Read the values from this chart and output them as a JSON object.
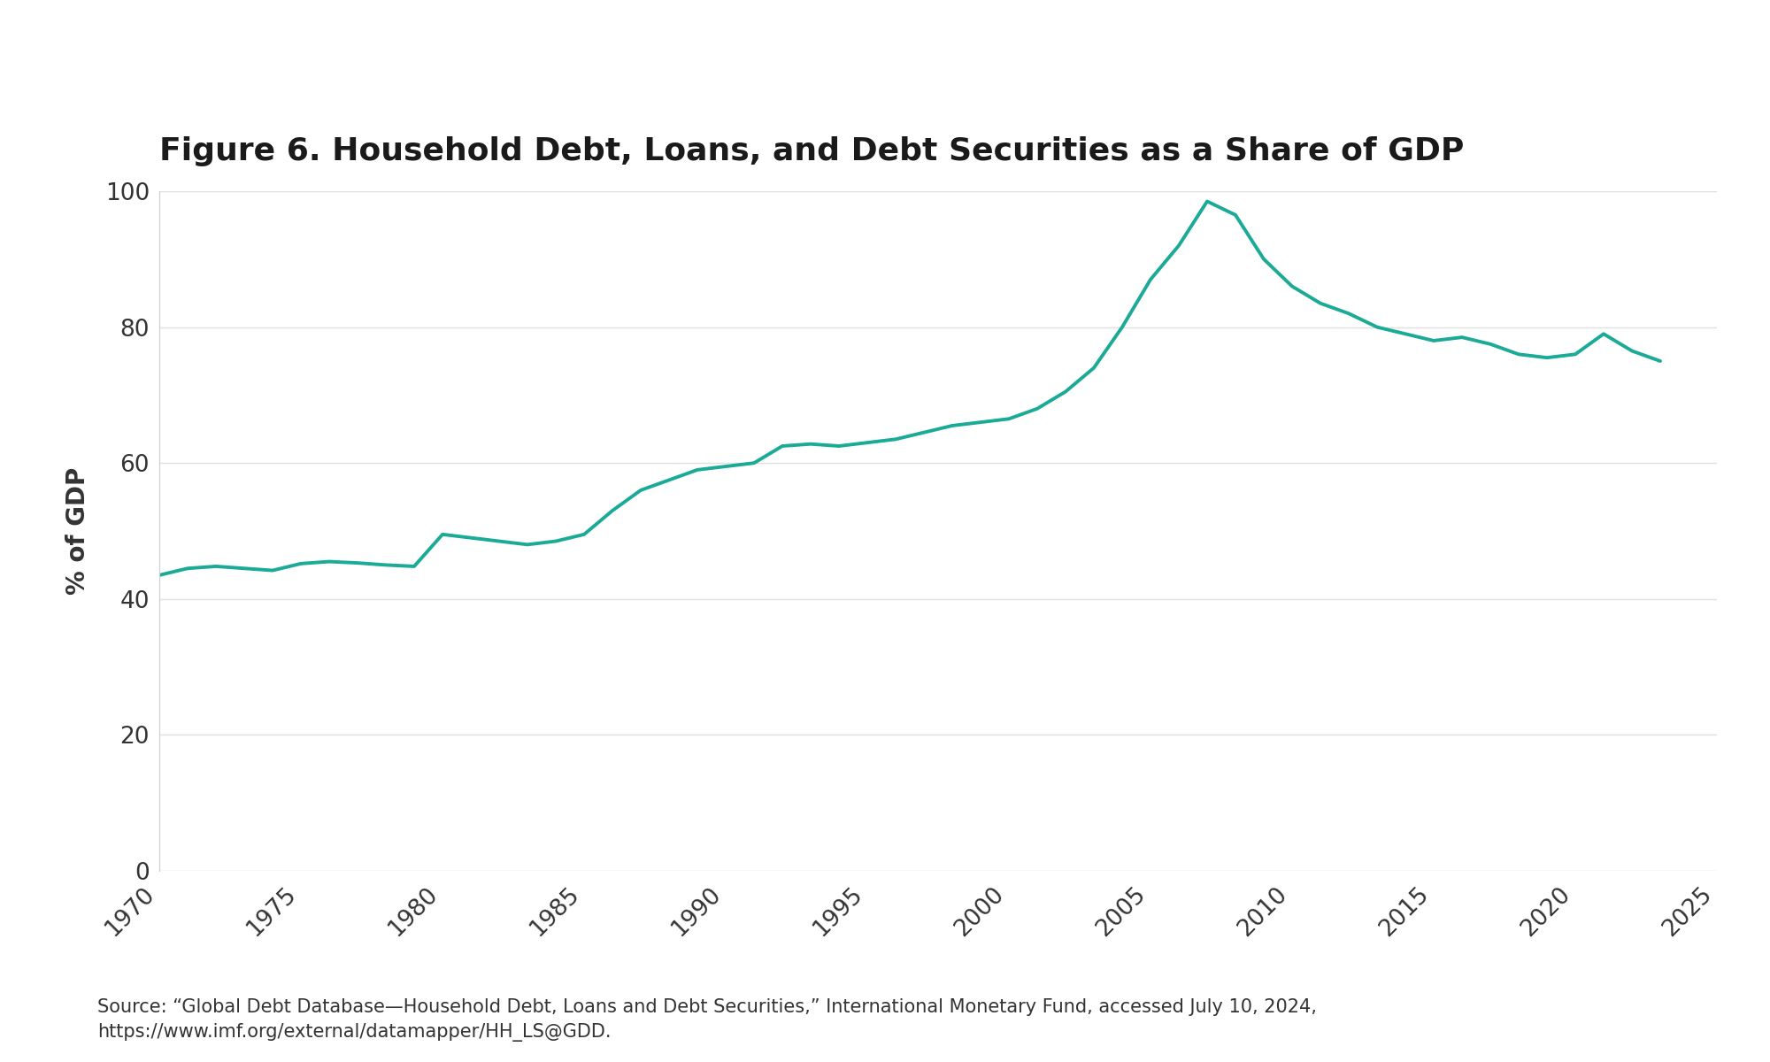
{
  "title": "Figure 6. Household Debt, Loans, and Debt Securities as a Share of GDP",
  "ylabel": "% of GDP",
  "line_color": "#1aaa96",
  "background_color": "#ffffff",
  "xlim": [
    1970,
    2025
  ],
  "ylim": [
    0,
    100
  ],
  "yticks": [
    0,
    20,
    40,
    60,
    80,
    100
  ],
  "xticks": [
    1970,
    1975,
    1980,
    1985,
    1990,
    1995,
    2000,
    2005,
    2010,
    2015,
    2020,
    2025
  ],
  "source_text": "Source: “Global Debt Database—Household Debt, Loans and Debt Securities,” International Monetary Fund, accessed July 10, 2024,\nhttps://www.imf.org/external/datamapper/HH_LS@GDD.",
  "years": [
    1970,
    1971,
    1972,
    1973,
    1974,
    1975,
    1976,
    1977,
    1978,
    1979,
    1980,
    1981,
    1982,
    1983,
    1984,
    1985,
    1986,
    1987,
    1988,
    1989,
    1990,
    1991,
    1992,
    1993,
    1994,
    1995,
    1996,
    1997,
    1998,
    1999,
    2000,
    2001,
    2002,
    2003,
    2004,
    2005,
    2006,
    2007,
    2008,
    2009,
    2010,
    2011,
    2012,
    2013,
    2014,
    2015,
    2016,
    2017,
    2018,
    2019,
    2020,
    2021,
    2022,
    2023
  ],
  "values": [
    43.5,
    44.5,
    44.8,
    44.5,
    44.2,
    45.2,
    45.5,
    45.3,
    45.0,
    44.8,
    49.5,
    49.0,
    48.5,
    48.0,
    48.5,
    49.5,
    53.0,
    56.0,
    57.5,
    59.0,
    59.5,
    60.0,
    62.5,
    62.8,
    62.5,
    63.0,
    63.5,
    64.5,
    65.5,
    66.0,
    66.5,
    68.0,
    70.5,
    74.0,
    80.0,
    87.0,
    92.0,
    98.5,
    96.5,
    90.0,
    86.0,
    83.5,
    82.0,
    80.0,
    79.0,
    78.0,
    78.5,
    77.5,
    76.0,
    75.5,
    76.0,
    79.0,
    76.5,
    75.0
  ],
  "title_fontsize": 26,
  "label_fontsize": 20,
  "tick_fontsize": 19,
  "source_fontsize": 15,
  "line_width": 2.8
}
